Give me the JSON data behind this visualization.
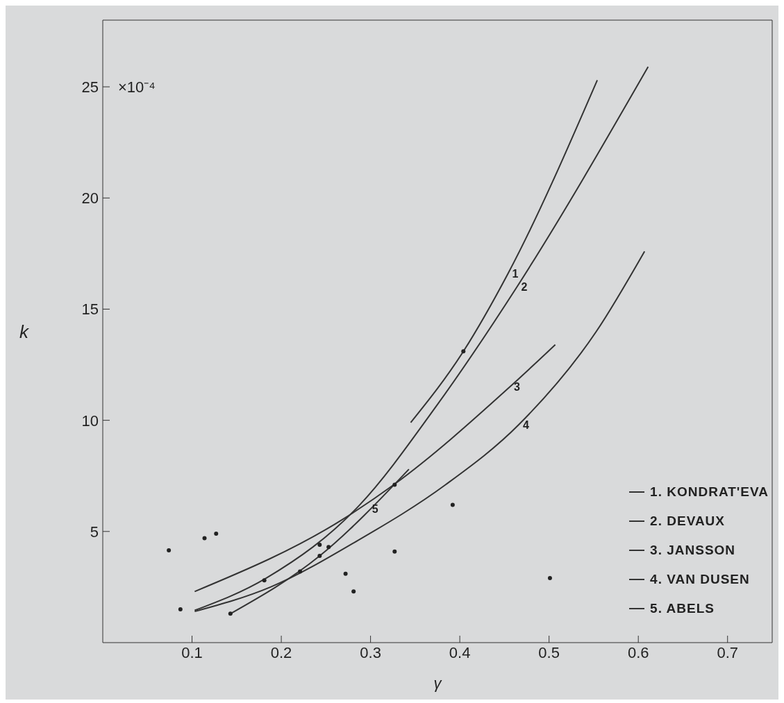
{
  "chart_data": {
    "type": "line",
    "xlabel": "γ",
    "ylabel": "k",
    "xlim": [
      0,
      0.75
    ],
    "xticks": [
      0.1,
      0.2,
      0.3,
      0.4,
      0.5,
      0.6,
      0.7
    ],
    "ylim": [
      0,
      28
    ],
    "yticks": [
      5,
      10,
      15,
      20,
      25
    ],
    "grid": false,
    "legend": "bottom right",
    "marker": "none",
    "line_style": "solid",
    "series": [
      {
        "name": "1. KONDRAT'EVA",
        "color": "#333333",
        "x": [
          0.345,
          0.404,
          0.454,
          0.554
        ],
        "values": [
          9.9,
          13.1,
          16.6,
          25.3
        ]
      },
      {
        "name": "2. DEVAUX",
        "color": "#333333",
        "x": [
          0.103,
          0.183,
          0.288,
          0.373,
          0.464,
          0.611
        ],
        "values": [
          1.45,
          2.9,
          6.2,
          10.6,
          16.0,
          25.9
        ]
      },
      {
        "name": "3. JANSSON",
        "color": "#333333",
        "x": [
          0.103,
          0.271,
          0.326,
          0.456,
          0.507
        ],
        "values": [
          2.3,
          5.6,
          7.1,
          11.5,
          13.4
        ]
      },
      {
        "name": "4. VAN DUSEN",
        "color": "#333333",
        "x": [
          0.103,
          0.188,
          0.286,
          0.384,
          0.466,
          0.553,
          0.607
        ],
        "values": [
          1.4,
          2.5,
          4.6,
          7.1,
          9.8,
          14.0,
          17.6
        ]
      },
      {
        "name": "5. ABELS",
        "color": "#333333",
        "x": [
          0.143,
          0.243,
          0.343
        ],
        "values": [
          1.3,
          3.9,
          7.8
        ]
      },
      {
        "type": "scatter",
        "marker": "circle",
        "color": "#222222",
        "x": [
          0.074,
          0.087,
          0.114,
          0.127,
          0.143,
          0.181,
          0.221,
          0.243,
          0.243,
          0.253,
          0.272,
          0.281,
          0.327,
          0.327,
          0.392,
          0.404,
          0.501
        ],
        "values": [
          4.15,
          1.5,
          4.7,
          4.9,
          1.3,
          2.8,
          3.2,
          4.4,
          3.9,
          4.3,
          3.1,
          2.3,
          4.1,
          7.1,
          6.2,
          13.1,
          2.9
        ]
      }
    ],
    "annotations": [
      {
        "text": "1",
        "x": 0.454,
        "y": 16.6
      },
      {
        "text": "2",
        "x": 0.464,
        "y": 16.0
      },
      {
        "text": "3",
        "x": 0.456,
        "y": 11.5
      },
      {
        "text": "4",
        "x": 0.466,
        "y": 9.8
      },
      {
        "text": "5",
        "x": 0.297,
        "y": 6.0
      },
      "×10⁻⁴"
    ]
  }
}
